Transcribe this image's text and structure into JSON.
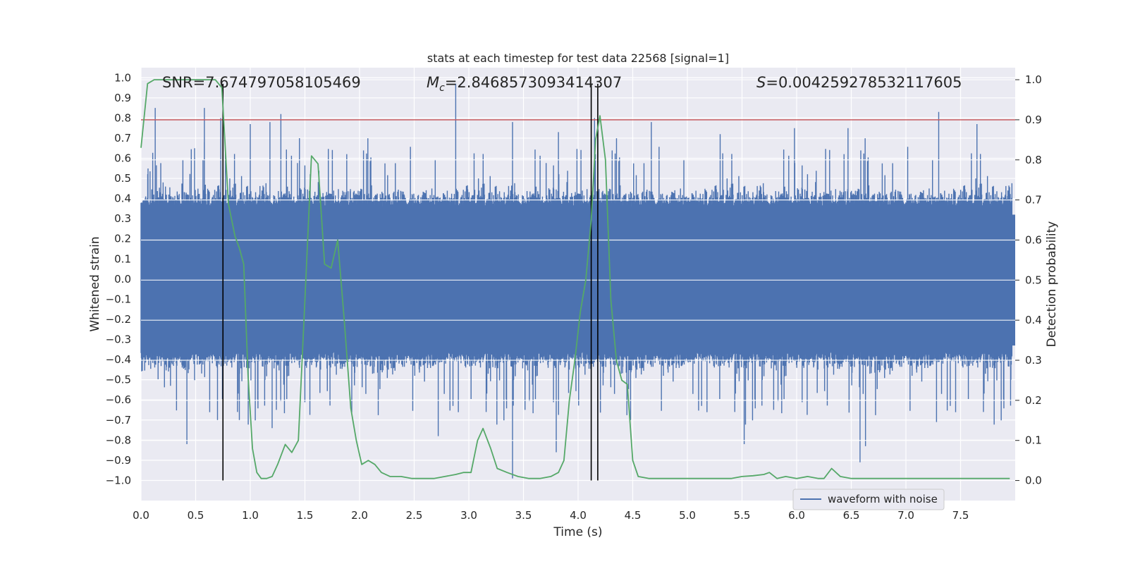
{
  "chart_data": {
    "type": "line",
    "title": "stats at each timestep for test data 22568 [signal=1]",
    "xlabel": "Time (s)",
    "ylabel": "Whitened strain",
    "y2label": "Detection probability",
    "xlim": [
      0,
      8
    ],
    "ylim": [
      -1.1,
      1.05
    ],
    "y2lim": [
      -0.05,
      1.03
    ],
    "x_ticks": [
      0.0,
      0.5,
      1.0,
      1.5,
      2.0,
      2.5,
      3.0,
      3.5,
      4.0,
      4.5,
      5.0,
      5.5,
      6.0,
      6.5,
      7.0,
      7.5
    ],
    "x_tick_labels": [
      "0.0",
      "0.5",
      "1.0",
      "1.5",
      "2.0",
      "2.5",
      "3.0",
      "3.5",
      "4.0",
      "4.5",
      "5.0",
      "5.5",
      "6.0",
      "6.5",
      "7.0",
      "7.5"
    ],
    "y_ticks": [
      -1.0,
      -0.9,
      -0.8,
      -0.7,
      -0.6,
      -0.5,
      -0.4,
      -0.3,
      -0.2,
      -0.1,
      0.0,
      0.1,
      0.2,
      0.3,
      0.4,
      0.5,
      0.6,
      0.7,
      0.8,
      0.9,
      1.0
    ],
    "y_tick_labels": [
      "−1.0",
      "−0.9",
      "−0.8",
      "−0.7",
      "−0.6",
      "−0.5",
      "−0.4",
      "−0.3",
      "−0.2",
      "−0.1",
      "0.0",
      "0.1",
      "0.2",
      "0.3",
      "0.4",
      "0.5",
      "0.6",
      "0.7",
      "0.8",
      "0.9",
      "1.0"
    ],
    "y2_ticks": [
      0.0,
      0.1,
      0.2,
      0.3,
      0.4,
      0.5,
      0.6,
      0.7,
      0.8,
      0.9,
      1.0
    ],
    "y2_tick_labels": [
      "0.0",
      "0.1",
      "0.2",
      "0.3",
      "0.4",
      "0.5",
      "0.6",
      "0.7",
      "0.8",
      "0.9",
      "1.0"
    ],
    "grid": true,
    "legend_position": "lower-right",
    "series": [
      {
        "name": "waveform with noise",
        "axis": "left",
        "color": "#4c72b0",
        "style": "dense noisy strain trace (band roughly −0.45 to 0.4 with spikes)",
        "spikes_high": [
          {
            "x": 0.13,
            "y": 0.85
          },
          {
            "x": 0.58,
            "y": 0.85
          },
          {
            "x": 0.73,
            "y": 0.8
          },
          {
            "x": 1.0,
            "y": 0.77
          },
          {
            "x": 1.18,
            "y": 0.78
          },
          {
            "x": 1.28,
            "y": 0.82
          },
          {
            "x": 1.45,
            "y": 0.7
          },
          {
            "x": 2.88,
            "y": 0.97
          },
          {
            "x": 3.4,
            "y": 0.78
          },
          {
            "x": 3.82,
            "y": 0.73
          },
          {
            "x": 4.15,
            "y": 0.8
          },
          {
            "x": 4.67,
            "y": 0.78
          },
          {
            "x": 5.3,
            "y": 0.72
          },
          {
            "x": 5.98,
            "y": 0.75
          },
          {
            "x": 6.47,
            "y": 0.75
          },
          {
            "x": 7.3,
            "y": 0.83
          },
          {
            "x": 7.65,
            "y": 0.77
          }
        ],
        "spikes_low": [
          {
            "x": 0.42,
            "y": -0.82
          },
          {
            "x": 0.7,
            "y": -0.7
          },
          {
            "x": 0.9,
            "y": -0.7
          },
          {
            "x": 1.2,
            "y": -0.74
          },
          {
            "x": 2.72,
            "y": -0.78
          },
          {
            "x": 3.4,
            "y": -0.99
          },
          {
            "x": 3.8,
            "y": -0.86
          },
          {
            "x": 4.48,
            "y": -0.7
          },
          {
            "x": 5.52,
            "y": -0.82
          },
          {
            "x": 6.58,
            "y": -0.91
          },
          {
            "x": 6.63,
            "y": -0.83
          },
          {
            "x": 7.28,
            "y": -0.71
          }
        ]
      },
      {
        "name": "",
        "axis": "right",
        "color": "#55a868",
        "x": [
          0.0,
          0.06,
          0.12,
          0.18,
          0.25,
          0.35,
          0.45,
          0.55,
          0.62,
          0.68,
          0.74,
          0.8,
          0.86,
          0.9,
          0.94,
          0.98,
          1.02,
          1.06,
          1.1,
          1.15,
          1.2,
          1.25,
          1.32,
          1.38,
          1.44,
          1.5,
          1.56,
          1.62,
          1.68,
          1.74,
          1.8,
          1.86,
          1.92,
          1.97,
          2.02,
          2.08,
          2.14,
          2.2,
          2.28,
          2.38,
          2.48,
          2.58,
          2.68,
          2.78,
          2.88,
          2.95,
          3.02,
          3.08,
          3.13,
          3.2,
          3.26,
          3.35,
          3.45,
          3.55,
          3.65,
          3.75,
          3.82,
          3.87,
          3.92,
          3.97,
          4.02,
          4.07,
          4.12,
          4.16,
          4.2,
          4.25,
          4.3,
          4.35,
          4.4,
          4.45,
          4.5,
          4.55,
          4.65,
          4.8,
          5.0,
          5.2,
          5.4,
          5.5,
          5.6,
          5.7,
          5.75,
          5.82,
          5.9,
          6.0,
          6.1,
          6.2,
          6.25,
          6.32,
          6.4,
          6.5,
          6.6,
          6.7,
          6.8,
          7.0,
          7.2,
          7.4,
          7.6,
          7.8,
          7.95
        ],
        "y": [
          0.83,
          0.99,
          1.0,
          1.0,
          1.0,
          1.0,
          1.0,
          1.0,
          1.0,
          1.0,
          0.98,
          0.69,
          0.61,
          0.58,
          0.54,
          0.26,
          0.08,
          0.02,
          0.005,
          0.005,
          0.01,
          0.04,
          0.09,
          0.07,
          0.1,
          0.45,
          0.81,
          0.79,
          0.54,
          0.53,
          0.6,
          0.4,
          0.18,
          0.1,
          0.04,
          0.05,
          0.04,
          0.02,
          0.01,
          0.01,
          0.005,
          0.005,
          0.005,
          0.01,
          0.015,
          0.02,
          0.02,
          0.1,
          0.13,
          0.08,
          0.03,
          0.02,
          0.01,
          0.005,
          0.005,
          0.01,
          0.02,
          0.05,
          0.2,
          0.3,
          0.42,
          0.5,
          0.65,
          0.85,
          0.91,
          0.8,
          0.45,
          0.3,
          0.25,
          0.24,
          0.05,
          0.01,
          0.005,
          0.005,
          0.005,
          0.005,
          0.005,
          0.01,
          0.012,
          0.015,
          0.02,
          0.005,
          0.01,
          0.005,
          0.01,
          0.005,
          0.005,
          0.03,
          0.01,
          0.005,
          0.005,
          0.005,
          0.005,
          0.005,
          0.005,
          0.005,
          0.005,
          0.005,
          0.005
        ]
      }
    ],
    "threshold_line": {
      "axis": "right",
      "value": 0.9,
      "color": "#c44e52"
    },
    "vertical_lines": [
      {
        "x": 0.75,
        "y_from": -1.0,
        "y_to": 0.97,
        "color": "#000000"
      },
      {
        "x": 4.12,
        "y_from": -1.0,
        "y_to": 0.97,
        "color": "#000000"
      },
      {
        "x": 4.18,
        "y_from": -1.0,
        "y_to": 0.97,
        "color": "#000000"
      }
    ],
    "annotations": [
      {
        "id": "snr",
        "prefix": "SNR",
        "value": "=7.674797058105469",
        "x": 0.2
      },
      {
        "id": "mc",
        "prefix_main": "M",
        "prefix_sub": "c",
        "value": "=2.8468573093414307",
        "x": 2.6
      },
      {
        "id": "s",
        "prefix": "S",
        "value": "=0.004259278532117605",
        "x": 5.6
      }
    ],
    "legend": [
      {
        "label": "waveform with noise",
        "color": "#4c72b0"
      }
    ]
  }
}
